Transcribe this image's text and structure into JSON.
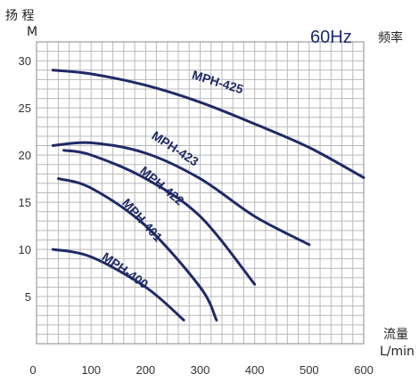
{
  "chart_data": {
    "type": "line",
    "frequency_label": "60Hz",
    "ylabel_title": "扬 程",
    "ylabel_unit": "M",
    "freq_cn": "频率",
    "xlabel_title": "流量",
    "xlabel_unit": "L/min",
    "xlim": [
      0,
      600
    ],
    "ylim": [
      0,
      32
    ],
    "x_ticks": [
      0,
      100,
      200,
      300,
      400,
      500,
      600
    ],
    "y_ticks": [
      5,
      10,
      15,
      20,
      25,
      30
    ],
    "grid": true,
    "series": [
      {
        "name": "MPH-425",
        "x": [
          30,
          100,
          200,
          300,
          400,
          500,
          600
        ],
        "y": [
          29.0,
          28.6,
          27.4,
          25.6,
          23.3,
          20.8,
          17.6
        ]
      },
      {
        "name": "MPH-423",
        "x": [
          30,
          100,
          200,
          300,
          400,
          500
        ],
        "y": [
          21.0,
          21.3,
          20.2,
          17.5,
          13.5,
          10.5
        ]
      },
      {
        "name": "MPH-422",
        "x": [
          50,
          100,
          200,
          300,
          400
        ],
        "y": [
          20.5,
          20.0,
          17.5,
          13.5,
          6.3
        ]
      },
      {
        "name": "MPH-401",
        "x": [
          40,
          100,
          200,
          300,
          330
        ],
        "y": [
          17.5,
          16.5,
          12.5,
          6.0,
          2.5
        ]
      },
      {
        "name": "MPH-400",
        "x": [
          30,
          100,
          200,
          270
        ],
        "y": [
          10.0,
          9.2,
          6.0,
          2.5
        ]
      }
    ]
  }
}
